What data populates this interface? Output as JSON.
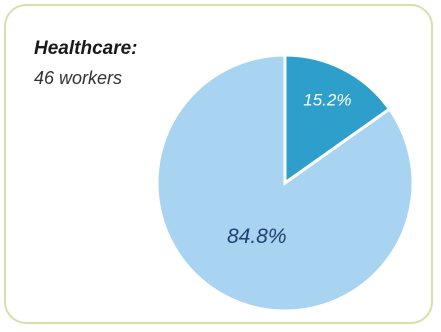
{
  "colors": {
    "border": "#d9dfaa",
    "slice_minor": "#2e9ecb",
    "slice_major": "#a8d4f1",
    "label_minor": "#ffffff",
    "label_major": "#1f3f73"
  },
  "chart_data": {
    "type": "pie",
    "title": "Healthcare:",
    "subtitle": "46 workers",
    "slices": [
      {
        "label": "15.2%",
        "value": 15.2,
        "color": "#2e9ecb"
      },
      {
        "label": "84.8%",
        "value": 84.8,
        "color": "#a8d4f1"
      }
    ]
  }
}
